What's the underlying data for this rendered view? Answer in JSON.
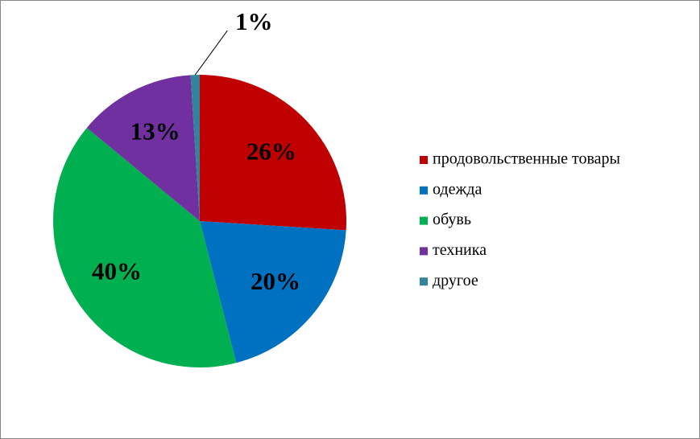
{
  "chart_data": {
    "type": "pie",
    "categories": [
      "продовольственные товары",
      "одежда",
      "обувь",
      "техника",
      "другое"
    ],
    "values": [
      26,
      20,
      40,
      13,
      1
    ],
    "value_labels": [
      "26%",
      "20%",
      "40%",
      "13%",
      "1%"
    ],
    "colors": [
      "#c00000",
      "#0070c0",
      "#00b050",
      "#7030a0",
      "#31849b"
    ],
    "legend": "right"
  }
}
